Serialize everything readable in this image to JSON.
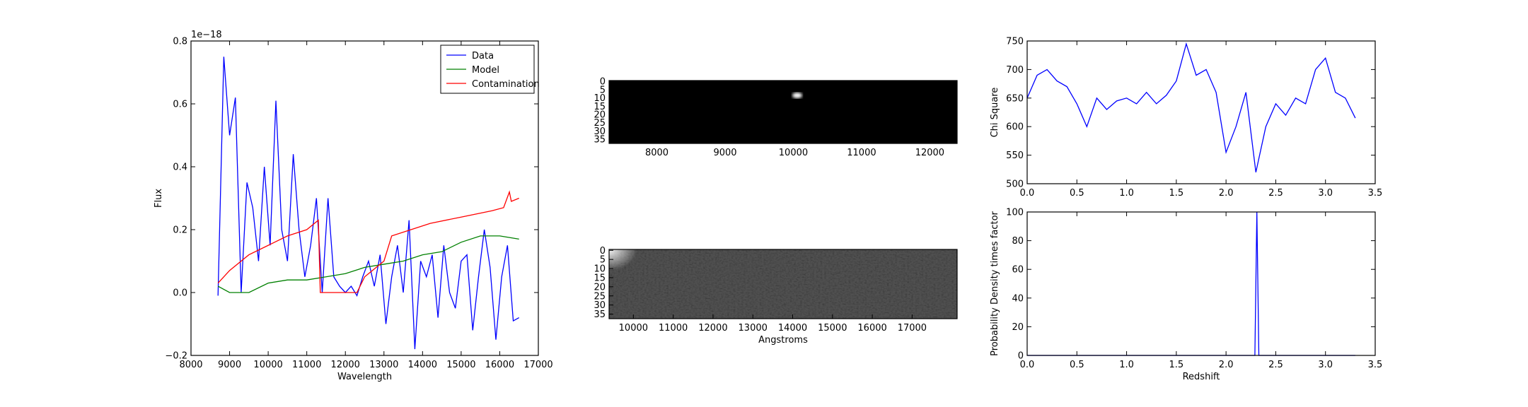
{
  "chart_data": [
    {
      "type": "line",
      "xlabel": "Wavelength",
      "ylabel": "Flux",
      "offset_text": "1e−18",
      "xlim": [
        8000,
        17000
      ],
      "ylim": [
        -0.2,
        0.8
      ],
      "xticks": [
        8000,
        9000,
        10000,
        11000,
        12000,
        13000,
        14000,
        15000,
        16000,
        17000
      ],
      "yticks": [
        {
          "value": -0.2,
          "label": "−0.2"
        },
        {
          "value": 0,
          "label": "0.0"
        },
        0.2,
        0.4,
        0.6,
        0.8
      ],
      "legend": "upper right",
      "series": [
        {
          "name": "Data",
          "color": "#0000ff",
          "x": [
            8700,
            8850,
            9000,
            9150,
            9300,
            9450,
            9600,
            9750,
            9900,
            10050,
            10200,
            10350,
            10500,
            10650,
            10800,
            10950,
            11100,
            11250,
            11400,
            11550,
            11700,
            11850,
            12000,
            12150,
            12300,
            12450,
            12600,
            12750,
            12900,
            13050,
            13200,
            13350,
            13500,
            13650,
            13800,
            13950,
            14100,
            14250,
            14400,
            14550,
            14700,
            14850,
            15000,
            15150,
            15300,
            15450,
            15600,
            15750,
            15900,
            16050,
            16200,
            16350,
            16500
          ],
          "values": [
            -0.01,
            0.75,
            0.5,
            0.62,
            0.0,
            0.35,
            0.27,
            0.1,
            0.4,
            0.15,
            0.61,
            0.2,
            0.1,
            0.44,
            0.2,
            0.05,
            0.15,
            0.3,
            0.0,
            0.3,
            0.05,
            0.02,
            0.0,
            0.02,
            -0.01,
            0.05,
            0.1,
            0.02,
            0.12,
            -0.1,
            0.05,
            0.15,
            0.0,
            0.23,
            -0.18,
            0.1,
            0.05,
            0.12,
            -0.08,
            0.15,
            0.0,
            -0.05,
            0.1,
            0.12,
            -0.12,
            0.05,
            0.2,
            0.08,
            -0.15,
            0.05,
            0.15,
            -0.09,
            -0.08
          ]
        },
        {
          "name": "Model",
          "color": "#008000",
          "x": [
            8700,
            9000,
            9500,
            10000,
            10500,
            11000,
            11500,
            12000,
            12500,
            13000,
            13500,
            14000,
            14500,
            15000,
            15500,
            16000,
            16500
          ],
          "values": [
            0.02,
            0.0,
            0.0,
            0.03,
            0.04,
            0.04,
            0.05,
            0.06,
            0.08,
            0.09,
            0.1,
            0.12,
            0.13,
            0.16,
            0.18,
            0.18,
            0.17
          ]
        },
        {
          "name": "Contamination",
          "color": "#ff0000",
          "x": [
            8700,
            9000,
            9500,
            10000,
            10500,
            11000,
            11300,
            11350,
            12300,
            12500,
            13000,
            13200,
            13700,
            14200,
            15000,
            15800,
            16100,
            16250,
            16300,
            16500
          ],
          "values": [
            0.03,
            0.07,
            0.12,
            0.15,
            0.18,
            0.2,
            0.23,
            0.0,
            0.0,
            0.05,
            0.1,
            0.18,
            0.2,
            0.22,
            0.24,
            0.26,
            0.27,
            0.32,
            0.29,
            0.3
          ]
        }
      ]
    },
    {
      "type": "image",
      "xlim": [
        7300,
        12400
      ],
      "ylim": [
        -0.5,
        37.5
      ],
      "y_inverted": true,
      "xticks": [
        8000,
        9000,
        10000,
        11000,
        12000
      ],
      "yticks": [
        0,
        5,
        10,
        15,
        20,
        25,
        30,
        35
      ]
    },
    {
      "type": "image",
      "xlabel": "Angstroms",
      "xlim": [
        9390,
        18130
      ],
      "ylim": [
        -0.5,
        37.5
      ],
      "y_inverted": true,
      "xticks": [
        10000,
        11000,
        12000,
        13000,
        14000,
        15000,
        16000,
        17000
      ],
      "yticks": [
        0,
        5,
        10,
        15,
        20,
        25,
        30,
        35
      ]
    },
    {
      "type": "line",
      "ylabel": "Chi Square",
      "xlim": [
        0,
        3.5
      ],
      "ylim": [
        500,
        750
      ],
      "xticks": [
        {
          "value": 0,
          "label": "0.0"
        },
        0.5,
        {
          "value": 1,
          "label": "1.0"
        },
        1.5,
        {
          "value": 2,
          "label": "2.0"
        },
        2.5,
        {
          "value": 3,
          "label": "3.0"
        },
        3.5
      ],
      "yticks": [
        500,
        550,
        600,
        650,
        700,
        750
      ],
      "series": [
        {
          "color": "#0000ff",
          "x": [
            0,
            0.1,
            0.2,
            0.3,
            0.4,
            0.5,
            0.6,
            0.7,
            0.8,
            0.9,
            1.0,
            1.1,
            1.2,
            1.3,
            1.4,
            1.5,
            1.6,
            1.7,
            1.8,
            1.9,
            2.0,
            2.1,
            2.2,
            2.3,
            2.4,
            2.5,
            2.6,
            2.7,
            2.8,
            2.9,
            3.0,
            3.1,
            3.2,
            3.3
          ],
          "values": [
            650,
            690,
            700,
            680,
            670,
            640,
            600,
            650,
            630,
            645,
            650,
            640,
            660,
            640,
            655,
            680,
            745,
            690,
            700,
            660,
            555,
            600,
            660,
            520,
            600,
            640,
            620,
            650,
            640,
            700,
            720,
            660,
            650,
            615
          ]
        }
      ]
    },
    {
      "type": "line",
      "xlabel": "Redshift",
      "ylabel": "Probability Density times factor",
      "xlim": [
        0,
        3.5
      ],
      "ylim": [
        0,
        100
      ],
      "xticks": [
        {
          "value": 0,
          "label": "0.0"
        },
        0.5,
        {
          "value": 1,
          "label": "1.0"
        },
        1.5,
        {
          "value": 2,
          "label": "2.0"
        },
        2.5,
        {
          "value": 3,
          "label": "3.0"
        },
        3.5
      ],
      "yticks": [
        0,
        20,
        40,
        60,
        80,
        100
      ],
      "series": [
        {
          "color": "#0000ff",
          "x": [
            0,
            2.29,
            2.31,
            2.33,
            3.3
          ],
          "values": [
            0,
            0,
            100,
            0,
            0
          ]
        }
      ]
    }
  ]
}
